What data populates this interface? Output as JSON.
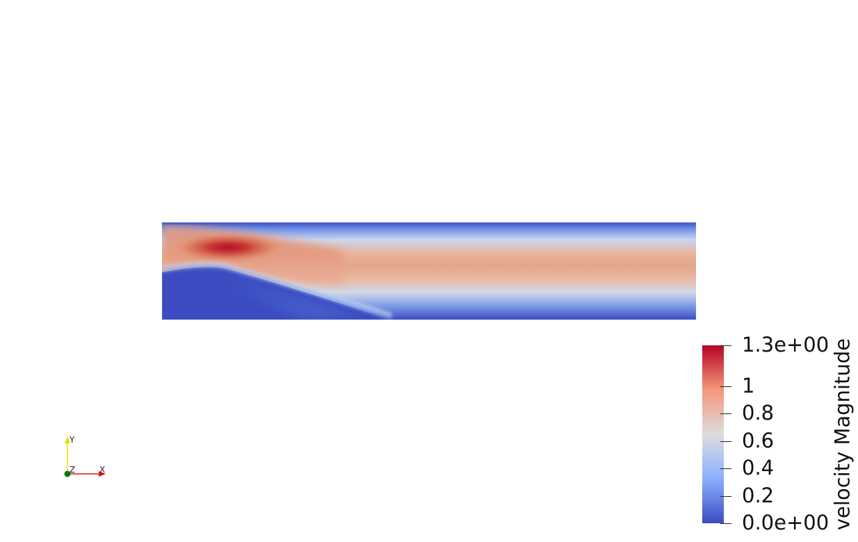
{
  "scalar_bar": {
    "title": "velocity Magnitude",
    "range": [
      0,
      1.3
    ],
    "tick_labels": [
      "1.3e+00",
      "1",
      "0.8",
      "0.6",
      "0.4",
      "0.2",
      "0.0e+00"
    ],
    "tick_values": [
      1.3,
      1.0,
      0.8,
      0.6,
      0.4,
      0.2,
      0.0
    ],
    "colormap": "Cool to Warm",
    "colors": {
      "low": "#3b4cc0",
      "mid": "#dddddd",
      "high": "#b40426"
    }
  },
  "axes": {
    "x_label": "X",
    "y_label": "Y",
    "z_label": "Z",
    "x_color": "#e01010",
    "y_color": "#e0e000",
    "z_color": "#0a7a0a"
  },
  "background": "#ffffff"
}
